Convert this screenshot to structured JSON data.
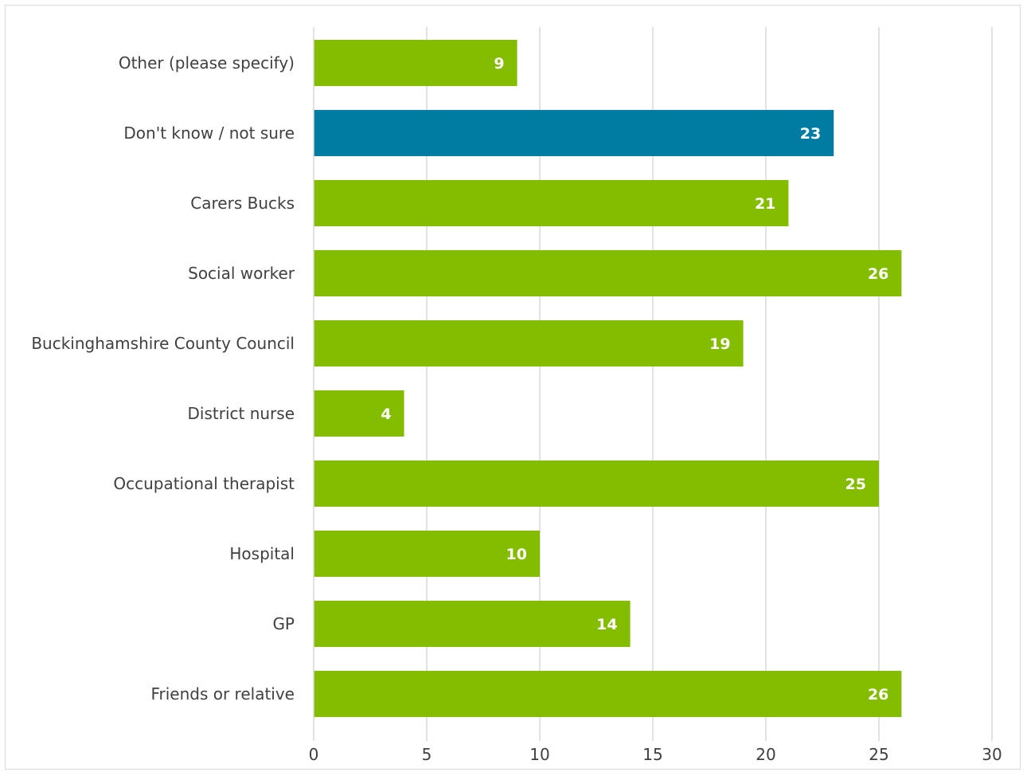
{
  "chart_data": {
    "type": "bar",
    "orientation": "horizontal",
    "title": "",
    "xlabel": "",
    "ylabel": "",
    "xlim": [
      0,
      30
    ],
    "x_ticks": [
      0,
      5,
      10,
      15,
      20,
      25,
      30
    ],
    "grid": "vertical",
    "legend": "none",
    "categories": [
      "Other (please specify)",
      "Don't know / not sure",
      "Carers Bucks",
      "Social worker",
      "Buckinghamshire County Council",
      "District nurse",
      "Occupational therapist",
      "Hospital",
      "GP",
      "Friends or relative"
    ],
    "values": [
      9,
      23,
      21,
      26,
      19,
      4,
      25,
      10,
      14,
      26
    ],
    "highlight_index": 1,
    "colors": {
      "bar": "#84bd00",
      "highlight": "#007ca3",
      "grid": "#d9d9d9",
      "text": "#404040",
      "data_label": "#ffffff"
    }
  }
}
